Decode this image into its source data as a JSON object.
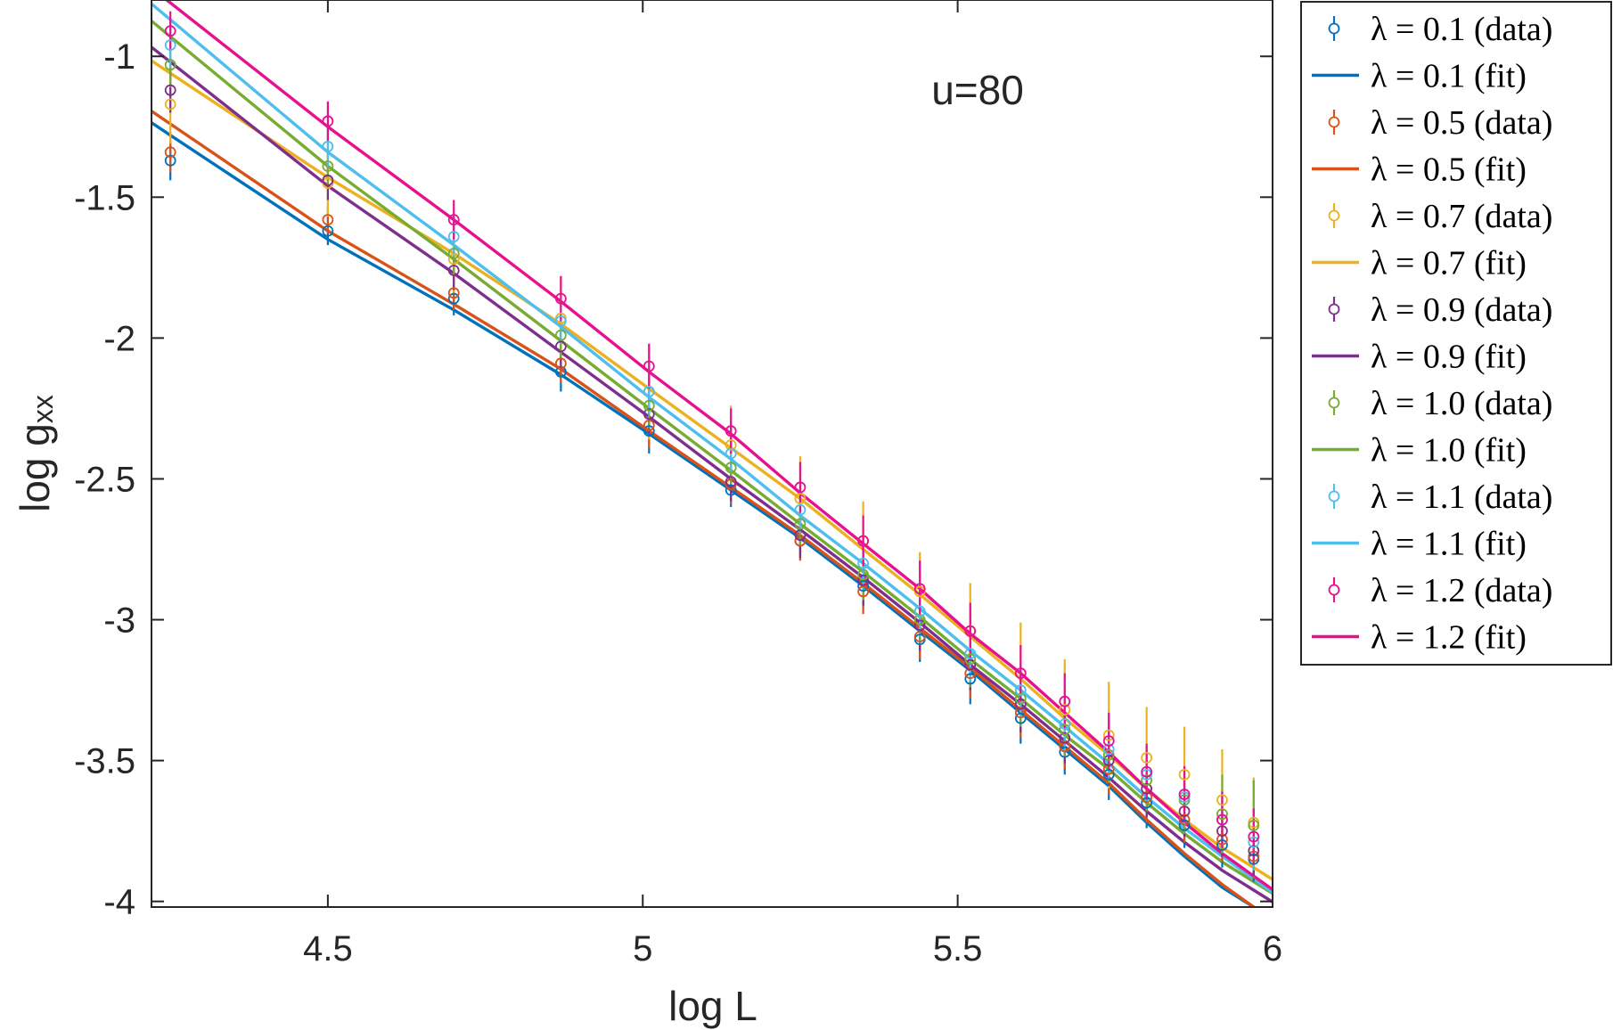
{
  "chart_data": {
    "type": "scatter",
    "title": "",
    "xlabel": "log L",
    "ylabel_main": "log  g",
    "ylabel_sub": "xx",
    "annotation": "u=80",
    "xlim": [
      4.22,
      6.0
    ],
    "ylim": [
      -4.02,
      -0.8
    ],
    "xticks": [
      4.5,
      5,
      5.5,
      6
    ],
    "xtick_labels": [
      "4.5",
      "5",
      "5.5",
      "6"
    ],
    "yticks": [
      -1,
      -1.5,
      -2,
      -2.5,
      -3,
      -3.5,
      -4
    ],
    "ytick_labels": [
      "-1",
      "-1.5",
      "-2",
      "-2.5",
      "-3",
      "-3.5",
      "-4"
    ],
    "grid": false,
    "legend_position": "outside-right",
    "x": [
      4.25,
      4.5,
      4.7,
      4.87,
      5.01,
      5.14,
      5.25,
      5.35,
      5.44,
      5.52,
      5.6,
      5.67,
      5.74,
      5.8,
      5.86,
      5.92,
      5.97
    ],
    "series": [
      {
        "lambda": "0.1",
        "legend_data": "λ = 0.1 (data)",
        "legend_fit": "λ = 0.1 (fit)",
        "color": "#0072BD",
        "y": [
          -1.37,
          -1.62,
          -1.86,
          -2.12,
          -2.33,
          -2.54,
          -2.72,
          -2.88,
          -3.07,
          -3.21,
          -3.35,
          -3.47,
          -3.55,
          -3.65,
          -3.73,
          -3.8,
          -3.85
        ],
        "err": [
          0.07,
          0.05,
          0.06,
          0.07,
          0.08,
          0.06,
          0.07,
          0.08,
          0.08,
          0.09,
          0.09,
          0.08,
          0.09,
          0.09,
          0.08,
          0.08,
          0.08
        ],
        "fit": [
          -1.28,
          -1.65,
          -1.9,
          -2.13,
          -2.34,
          -2.54,
          -2.71,
          -2.88,
          -3.04,
          -3.18,
          -3.33,
          -3.46,
          -3.59,
          -3.72,
          -3.84,
          -3.95,
          -4.02
        ]
      },
      {
        "lambda": "0.5",
        "legend_data": "λ = 0.5 (data)",
        "legend_fit": "λ = 0.5 (fit)",
        "color": "#D95319",
        "y": [
          -1.34,
          -1.58,
          -1.84,
          -2.09,
          -2.31,
          -2.52,
          -2.72,
          -2.9,
          -3.06,
          -3.19,
          -3.33,
          -3.45,
          -3.53,
          -3.63,
          -3.71,
          -3.78,
          -3.84
        ],
        "err": [
          0.07,
          0.05,
          0.06,
          0.07,
          0.08,
          0.07,
          0.07,
          0.08,
          0.08,
          0.09,
          0.09,
          0.08,
          0.09,
          0.09,
          0.08,
          0.08,
          0.08
        ],
        "fit": [
          -1.24,
          -1.62,
          -1.88,
          -2.11,
          -2.33,
          -2.53,
          -2.7,
          -2.87,
          -3.03,
          -3.17,
          -3.32,
          -3.45,
          -3.58,
          -3.71,
          -3.83,
          -3.94,
          -4.02
        ]
      },
      {
        "lambda": "0.7",
        "legend_data": "λ = 0.7 (data)",
        "legend_fit": "λ = 0.7 (fit)",
        "color": "#EDB120",
        "y": [
          -1.17,
          -1.45,
          -1.72,
          -1.93,
          -2.19,
          -2.38,
          -2.57,
          -2.72,
          -2.9,
          -3.04,
          -3.19,
          -3.32,
          -3.41,
          -3.49,
          -3.55,
          -3.64,
          -3.72
        ],
        "err": [
          0.14,
          0.12,
          0.12,
          0.15,
          0.17,
          0.14,
          0.15,
          0.14,
          0.14,
          0.17,
          0.18,
          0.18,
          0.19,
          0.18,
          0.17,
          0.18,
          0.16
        ],
        "fit": [
          -1.06,
          -1.43,
          -1.7,
          -1.95,
          -2.18,
          -2.39,
          -2.57,
          -2.75,
          -2.91,
          -3.06,
          -3.21,
          -3.35,
          -3.48,
          -3.6,
          -3.71,
          -3.81,
          -3.88
        ]
      },
      {
        "lambda": "0.9",
        "legend_data": "λ = 0.9 (data)",
        "legend_fit": "λ = 0.9 (fit)",
        "color": "#7E2F8E",
        "y": [
          -1.12,
          -1.44,
          -1.76,
          -2.03,
          -2.27,
          -2.51,
          -2.7,
          -2.86,
          -3.02,
          -3.16,
          -3.3,
          -3.42,
          -3.5,
          -3.6,
          -3.68,
          -3.75,
          -3.82
        ],
        "err": [
          0.08,
          0.07,
          0.07,
          0.08,
          0.08,
          0.07,
          0.08,
          0.09,
          0.09,
          0.09,
          0.1,
          0.09,
          0.09,
          0.1,
          0.09,
          0.09,
          0.09
        ],
        "fit": [
          -1.02,
          -1.46,
          -1.77,
          -2.05,
          -2.28,
          -2.5,
          -2.68,
          -2.85,
          -3.01,
          -3.16,
          -3.3,
          -3.43,
          -3.56,
          -3.68,
          -3.79,
          -3.89,
          -3.96
        ]
      },
      {
        "lambda": "1.0",
        "legend_data": "λ = 1.0 (data)",
        "legend_fit": "λ = 1.0 (fit)",
        "color": "#77AC30",
        "y": [
          -1.03,
          -1.39,
          -1.7,
          -1.99,
          -2.24,
          -2.46,
          -2.66,
          -2.84,
          -3.0,
          -3.14,
          -3.28,
          -3.39,
          -3.48,
          -3.57,
          -3.64,
          -3.69,
          -3.73
        ],
        "err": [
          0.08,
          0.07,
          0.08,
          0.08,
          0.08,
          0.07,
          0.08,
          0.09,
          0.09,
          0.1,
          0.1,
          0.1,
          0.1,
          0.11,
          0.12,
          0.14,
          0.16
        ],
        "fit": [
          -0.93,
          -1.39,
          -1.72,
          -2.01,
          -2.25,
          -2.47,
          -2.66,
          -2.83,
          -2.99,
          -3.14,
          -3.28,
          -3.41,
          -3.53,
          -3.65,
          -3.76,
          -3.86,
          -3.93
        ]
      },
      {
        "lambda": "1.1",
        "legend_data": "λ = 1.1 (data)",
        "legend_fit": "λ = 1.1 (fit)",
        "color": "#4DBEEE",
        "y": [
          -0.96,
          -1.32,
          -1.64,
          -1.94,
          -2.19,
          -2.41,
          -2.61,
          -2.8,
          -2.97,
          -3.12,
          -3.25,
          -3.37,
          -3.46,
          -3.55,
          -3.63,
          -3.71,
          -3.79
        ],
        "err": [
          0.08,
          0.07,
          0.07,
          0.08,
          0.08,
          0.07,
          0.08,
          0.09,
          0.09,
          0.1,
          0.1,
          0.1,
          0.1,
          0.1,
          0.1,
          0.1,
          0.1
        ],
        "fit": [
          -0.87,
          -1.34,
          -1.67,
          -1.96,
          -2.21,
          -2.43,
          -2.63,
          -2.8,
          -2.96,
          -3.11,
          -3.25,
          -3.38,
          -3.51,
          -3.63,
          -3.74,
          -3.84,
          -3.92
        ]
      },
      {
        "lambda": "1.2",
        "legend_data": "λ = 1.2 (data)",
        "legend_fit": "λ = 1.2 (fit)",
        "color": "#E7108F",
        "y": [
          -0.91,
          -1.23,
          -1.58,
          -1.86,
          -2.1,
          -2.33,
          -2.53,
          -2.72,
          -2.89,
          -3.04,
          -3.19,
          -3.29,
          -3.43,
          -3.54,
          -3.62,
          -3.71,
          -3.77
        ],
        "err": [
          0.07,
          0.07,
          0.07,
          0.08,
          0.08,
          0.08,
          0.09,
          0.09,
          0.1,
          0.1,
          0.1,
          0.1,
          0.1,
          0.1,
          0.1,
          0.1,
          0.1
        ],
        "fit": [
          -0.81,
          -1.25,
          -1.58,
          -1.87,
          -2.12,
          -2.34,
          -2.55,
          -2.73,
          -2.89,
          -3.05,
          -3.19,
          -3.33,
          -3.47,
          -3.6,
          -3.72,
          -3.83,
          -3.91
        ]
      }
    ]
  }
}
